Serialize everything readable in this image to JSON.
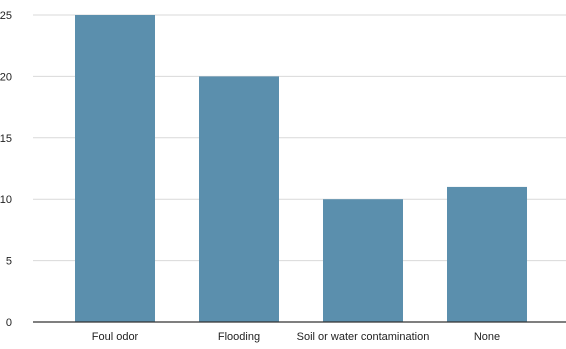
{
  "chart_data": {
    "type": "bar",
    "title": "",
    "xlabel": "",
    "ylabel": "",
    "categories": [
      "Foul odor",
      "Flooding",
      "Soil or water contamination",
      "None"
    ],
    "values": [
      25,
      20,
      10,
      11
    ],
    "ylim": [
      0,
      25
    ],
    "yticks": [
      0,
      5,
      10,
      15,
      20,
      25
    ],
    "grid": true,
    "legend": "none",
    "bar_color": "#5b8fad",
    "grid_color": "#d9d9d9",
    "axis_color": "#333333",
    "text_color": "#222222"
  }
}
